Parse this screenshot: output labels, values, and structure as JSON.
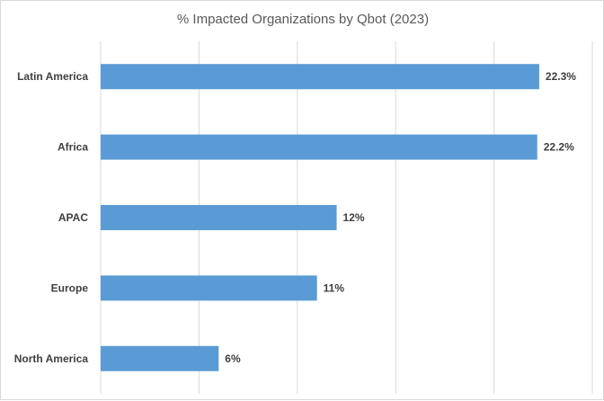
{
  "chart_data": {
    "type": "bar",
    "orientation": "horizontal",
    "title": "% Impacted Organizations by Qbot (2023)",
    "xlabel": "",
    "ylabel": "",
    "categories": [
      "Latin America",
      "Africa",
      "APAC",
      "Europe",
      "North America"
    ],
    "values": [
      22.3,
      22.2,
      12,
      11,
      6
    ],
    "data_labels": [
      "22.3%",
      "22.2%",
      "12%",
      "11%",
      "6%"
    ],
    "xlim": [
      0,
      25
    ],
    "grid": true,
    "legend": "none",
    "colors": {
      "bar": "#5b9bd5",
      "grid": "#d9d9d9",
      "text": "#404040",
      "title": "#595959"
    }
  }
}
